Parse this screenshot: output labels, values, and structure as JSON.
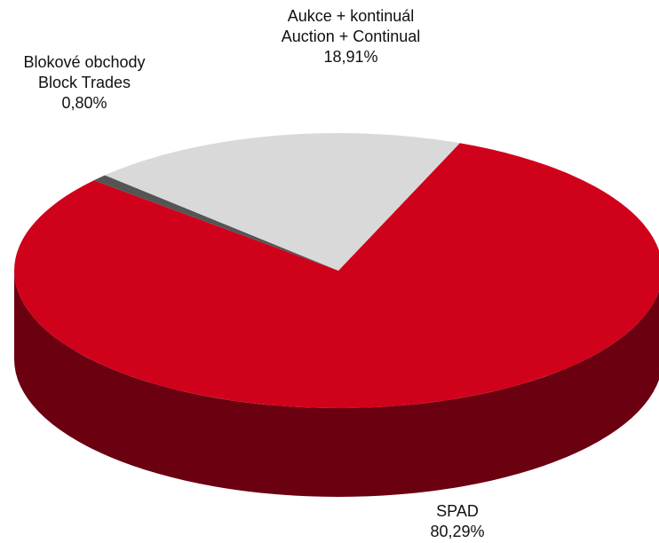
{
  "chart_data": {
    "type": "pie",
    "title": "",
    "slices": [
      {
        "label_cz": "SPAD",
        "label_en": "",
        "value": 80.29,
        "value_label": "80,29%",
        "color": "#d0021b",
        "side_color": "#6b0010"
      },
      {
        "label_cz": "Blokové obchody",
        "label_en": "Block Trades",
        "value": 0.8,
        "value_label": "0,80%",
        "color": "#555555",
        "side_color": "#2e2e2e"
      },
      {
        "label_cz": "Aukce + kontinuál",
        "label_en": "Auction + Continual",
        "value": 18.91,
        "value_label": "18,91%",
        "color": "#d9d9d9",
        "side_color": "#9a9a9a"
      }
    ],
    "style": "3d",
    "legend": "none"
  }
}
